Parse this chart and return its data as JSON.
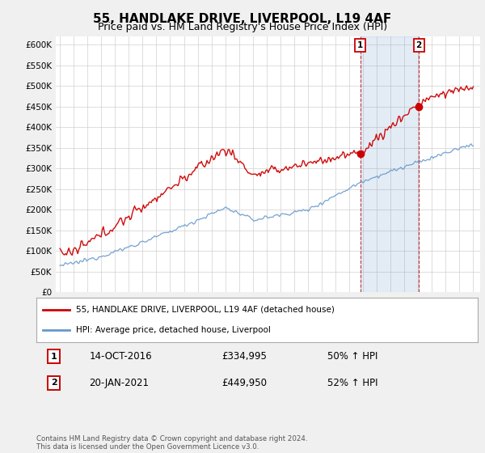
{
  "title": "55, HANDLAKE DRIVE, LIVERPOOL, L19 4AF",
  "subtitle": "Price paid vs. HM Land Registry's House Price Index (HPI)",
  "title_fontsize": 11,
  "subtitle_fontsize": 9,
  "ylim": [
    0,
    620000
  ],
  "yticks": [
    0,
    50000,
    100000,
    150000,
    200000,
    250000,
    300000,
    350000,
    400000,
    450000,
    500000,
    550000,
    600000
  ],
  "ytick_labels": [
    "£0",
    "£50K",
    "£100K",
    "£150K",
    "£200K",
    "£250K",
    "£300K",
    "£350K",
    "£400K",
    "£450K",
    "£500K",
    "£550K",
    "£600K"
  ],
  "background_color": "#f0f0f0",
  "plot_bg_color": "#ffffff",
  "red_color": "#cc0000",
  "blue_color": "#6699cc",
  "shade_color": "#ddeeff",
  "marker1_year": 2016.79,
  "marker2_year": 2021.05,
  "marker1_price": 334995,
  "marker2_price": 449950,
  "legend_label1": "55, HANDLAKE DRIVE, LIVERPOOL, L19 4AF (detached house)",
  "legend_label2": "HPI: Average price, detached house, Liverpool",
  "footer": "Contains HM Land Registry data © Crown copyright and database right 2024.\nThis data is licensed under the Open Government Licence v3.0.",
  "xlim_left": 1994.7,
  "xlim_right": 2025.5
}
